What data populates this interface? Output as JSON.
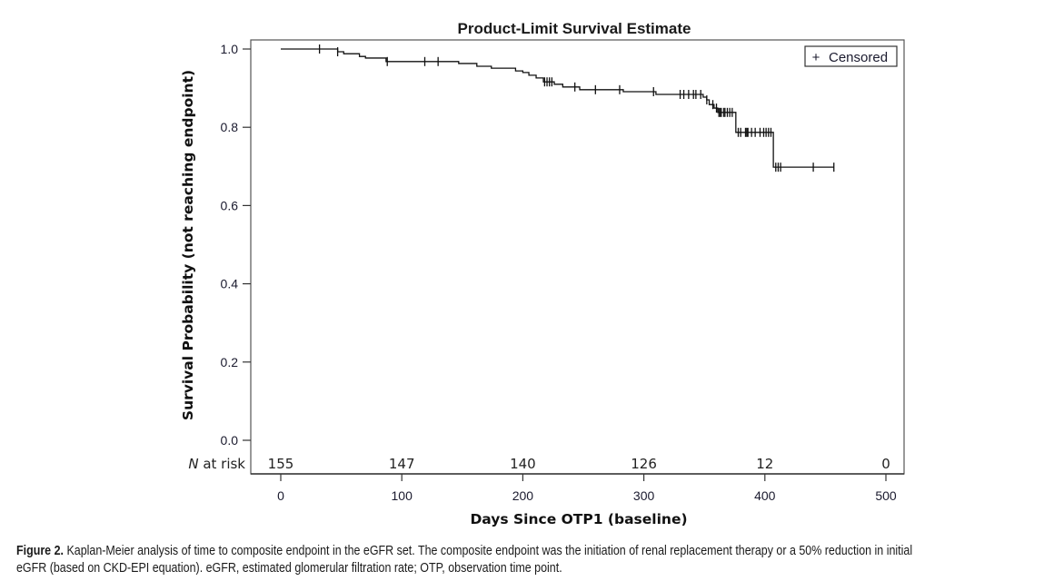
{
  "chart_data": {
    "type": "line",
    "subtype": "kaplan-meier step",
    "title": "Product-Limit Survival Estimate",
    "xlabel": "Days Since OTP1 (baseline)",
    "ylabel": "Survival Probability (not reaching endpoint)",
    "xlim": [
      0,
      500
    ],
    "ylim": [
      0,
      1.0
    ],
    "x_ticks": [
      0,
      100,
      200,
      300,
      400,
      500
    ],
    "x_tick_labels": [
      "0",
      "100",
      "200",
      "300",
      "400",
      "500"
    ],
    "y_ticks": [
      0.0,
      0.2,
      0.4,
      0.6,
      0.8,
      1.0
    ],
    "y_tick_labels": [
      "0.0",
      "0.2",
      "0.4",
      "0.6",
      "0.8",
      "1.0"
    ],
    "grid": false,
    "legend": {
      "placement": "top-right",
      "entries": [
        {
          "symbol": "+",
          "label": "Censored"
        }
      ]
    },
    "series": [
      {
        "name": "Survival",
        "steps": [
          [
            0,
            1.0
          ],
          [
            47,
            0.993
          ],
          [
            52,
            0.988
          ],
          [
            65,
            0.981
          ],
          [
            70,
            0.977
          ],
          [
            87,
            0.968
          ],
          [
            147,
            0.963
          ],
          [
            162,
            0.956
          ],
          [
            174,
            0.951
          ],
          [
            194,
            0.944
          ],
          [
            200,
            0.94
          ],
          [
            205,
            0.933
          ],
          [
            211,
            0.926
          ],
          [
            217,
            0.916
          ],
          [
            226,
            0.91
          ],
          [
            233,
            0.903
          ],
          [
            247,
            0.896
          ],
          [
            283,
            0.891
          ],
          [
            310,
            0.884
          ],
          [
            349,
            0.877
          ],
          [
            352,
            0.87
          ],
          [
            354,
            0.858
          ],
          [
            358,
            0.849
          ],
          [
            361,
            0.838
          ],
          [
            376,
            0.787
          ],
          [
            407,
            0.698
          ]
        ],
        "end_x": 457,
        "censored_x": [
          32,
          47,
          88,
          119,
          130,
          218,
          220,
          222,
          224,
          243,
          260,
          280,
          308,
          330,
          333,
          337,
          341,
          343,
          347,
          352,
          357,
          360,
          362,
          363,
          364,
          366,
          367,
          369,
          371,
          373,
          378,
          380,
          384,
          385,
          386,
          389,
          392,
          396,
          399,
          401,
          403,
          405,
          409,
          411,
          413,
          440,
          457
        ]
      }
    ],
    "risk_table": {
      "label_italic": "N",
      "label_rest": " at risk",
      "x": [
        0,
        100,
        200,
        300,
        400,
        500
      ],
      "values": [
        "155",
        "147",
        "140",
        "126",
        "12",
        "0"
      ]
    }
  },
  "caption": {
    "label": "Figure 2.",
    "line1": " Kaplan-Meier analysis of time to composite endpoint in the eGFR set. The composite endpoint was the initiation of renal replacement therapy or a 50% reduction in initial",
    "line2": "eGFR (based on CKD-EPI equation). eGFR, estimated glomerular filtration rate; OTP, observation time point."
  }
}
